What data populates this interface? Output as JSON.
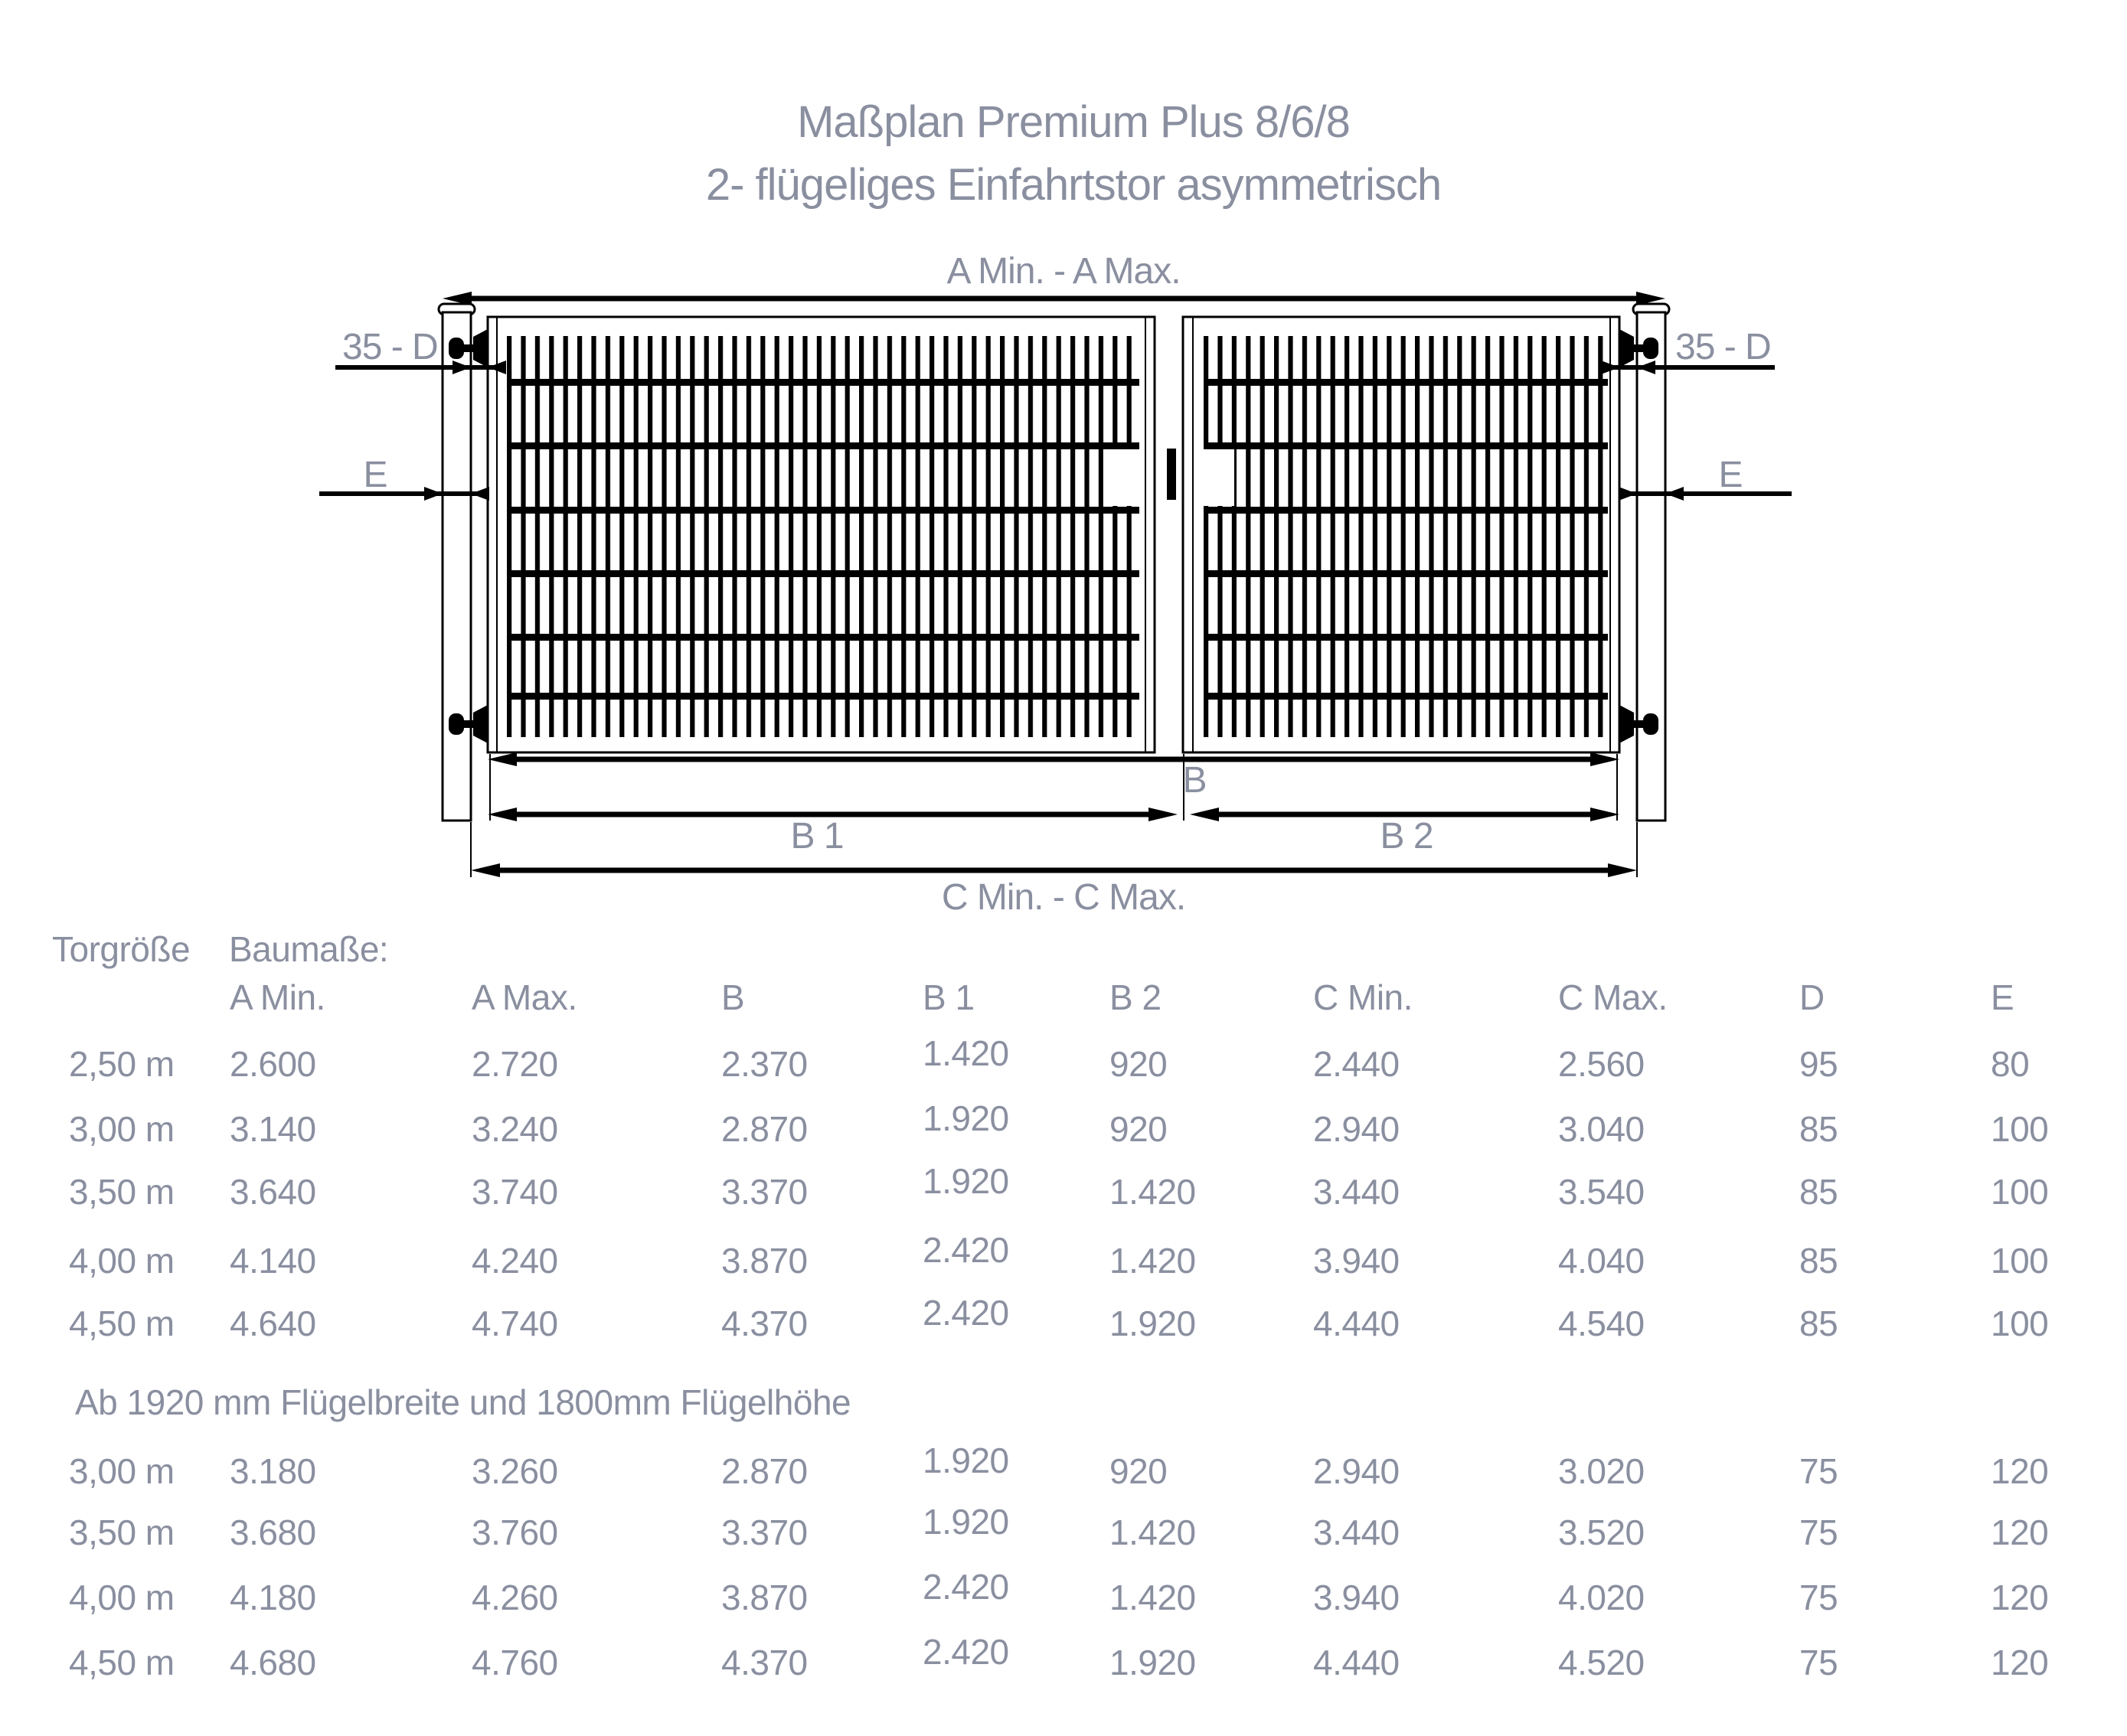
{
  "title": {
    "line1": "Maßplan Premium Plus 8/6/8",
    "line2": "2- flügeliges Einfahrtstor asymmetrisch"
  },
  "diagram": {
    "labels": {
      "a_span": "A Min. - A Max.",
      "hinge_left": "35 - D",
      "hinge_right": "35 - D",
      "post_left": "E",
      "post_right": "E",
      "b": "B",
      "b1": "B 1",
      "b2": "B 2",
      "c_span": "C Min. - C Max."
    }
  },
  "table": {
    "header": {
      "col_size": "Torgröße",
      "col_build": "Baumaße:"
    },
    "columns": [
      "A Min.",
      "A Max.",
      "B",
      "B 1",
      "B 2",
      "C Min.",
      "C Max.",
      "D",
      "E"
    ],
    "group1": {
      "rows": [
        {
          "size": "2,50 m",
          "values": [
            "2.600",
            "2.720",
            "2.370",
            "1.420",
            "920",
            "2.440",
            "2.560",
            "95",
            "80"
          ]
        },
        {
          "size": "3,00 m",
          "values": [
            "3.140",
            "3.240",
            "2.870",
            "1.920",
            "920",
            "2.940",
            "3.040",
            "85",
            "100"
          ]
        },
        {
          "size": "3,50 m",
          "values": [
            "3.640",
            "3.740",
            "3.370",
            "1.920",
            "1.420",
            "3.440",
            "3.540",
            "85",
            "100"
          ]
        },
        {
          "size": "4,00 m",
          "values": [
            "4.140",
            "4.240",
            "3.870",
            "2.420",
            "1.420",
            "3.940",
            "4.040",
            "85",
            "100"
          ]
        },
        {
          "size": "4,50 m",
          "values": [
            "4.640",
            "4.740",
            "4.370",
            "2.420",
            "1.920",
            "4.440",
            "4.540",
            "85",
            "100"
          ]
        }
      ]
    },
    "note": "Ab 1920 mm Flügelbreite und 1800mm Flügelhöhe",
    "group2": {
      "rows": [
        {
          "size": "3,00 m",
          "values": [
            "3.180",
            "3.260",
            "2.870",
            "1.920",
            "920",
            "2.940",
            "3.020",
            "75",
            "120"
          ]
        },
        {
          "size": "3,50 m",
          "values": [
            "3.680",
            "3.760",
            "3.370",
            "1.920",
            "1.420",
            "3.440",
            "3.520",
            "75",
            "120"
          ]
        },
        {
          "size": "4,00 m",
          "values": [
            "4.180",
            "4.260",
            "3.870",
            "2.420",
            "1.420",
            "3.940",
            "4.020",
            "75",
            "120"
          ]
        },
        {
          "size": "4,50 m",
          "values": [
            "4.680",
            "4.760",
            "4.370",
            "2.420",
            "1.920",
            "4.440",
            "4.520",
            "75",
            "120"
          ]
        }
      ]
    }
  },
  "colors": {
    "background": "#ffffff",
    "line": "#000000",
    "label_text": "#8a8fa0"
  }
}
